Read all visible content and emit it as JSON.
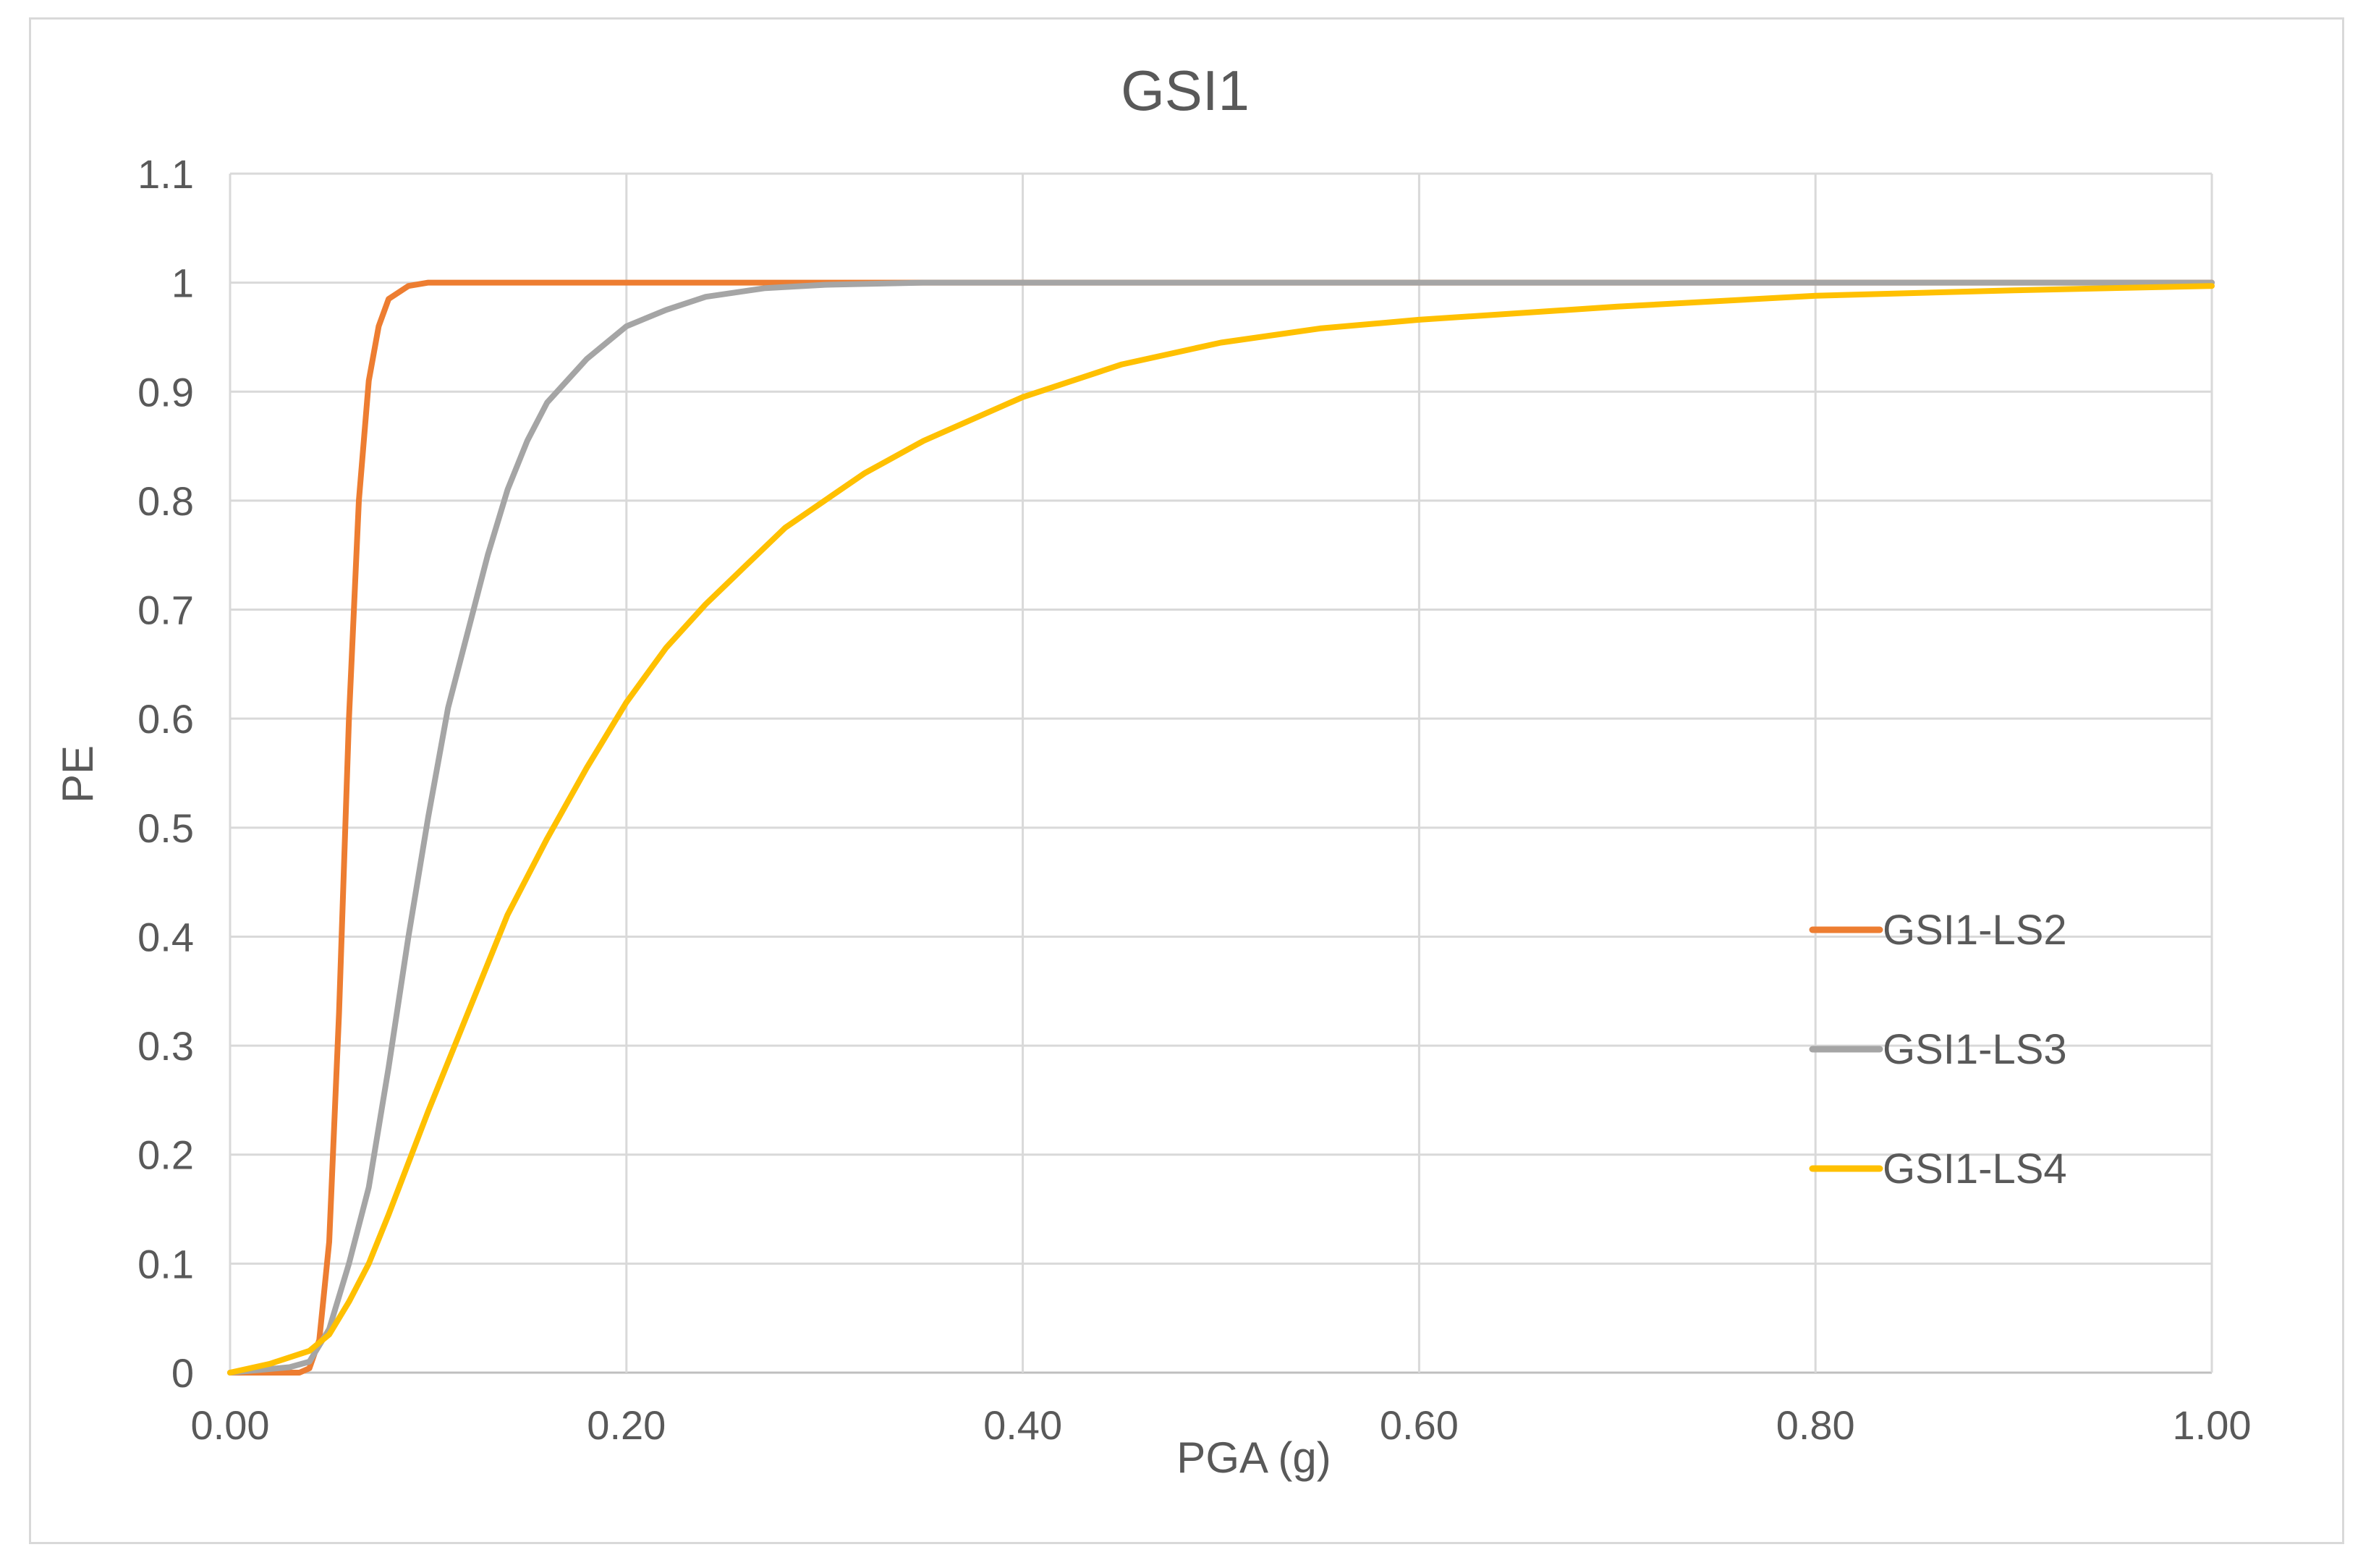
{
  "chart_data": {
    "type": "line",
    "title": "GSI1",
    "xlabel": "PGA (g)",
    "ylabel": "PE",
    "xlim": [
      0,
      1.0
    ],
    "ylim": [
      0,
      1.1
    ],
    "x_ticks": [
      "0.00",
      "0.20",
      "0.40",
      "0.60",
      "0.80",
      "1.00"
    ],
    "y_ticks": [
      "0",
      "0.1",
      "0.2",
      "0.3",
      "0.4",
      "0.5",
      "0.6",
      "0.7",
      "0.8",
      "0.9",
      "1",
      "1.1"
    ],
    "grid": true,
    "legend_position": "right",
    "series": [
      {
        "name": "GSI1-LS2",
        "color": "#ED7D31",
        "points": [
          [
            0,
            0
          ],
          [
            0.035,
            0
          ],
          [
            0.04,
            0.004
          ],
          [
            0.045,
            0.03
          ],
          [
            0.05,
            0.12
          ],
          [
            0.055,
            0.33
          ],
          [
            0.06,
            0.6
          ],
          [
            0.065,
            0.8
          ],
          [
            0.07,
            0.91
          ],
          [
            0.075,
            0.96
          ],
          [
            0.08,
            0.985
          ],
          [
            0.09,
            0.997
          ],
          [
            0.1,
            1.0
          ],
          [
            0.2,
            1.0
          ],
          [
            0.4,
            1.0
          ],
          [
            0.6,
            1.0
          ],
          [
            0.8,
            1.0
          ],
          [
            1.0,
            1.0
          ]
        ]
      },
      {
        "name": "GSI1-LS3",
        "color": "#A5A5A5",
        "points": [
          [
            0,
            0
          ],
          [
            0.03,
            0.005
          ],
          [
            0.04,
            0.01
          ],
          [
            0.05,
            0.04
          ],
          [
            0.06,
            0.1
          ],
          [
            0.07,
            0.17
          ],
          [
            0.08,
            0.28
          ],
          [
            0.09,
            0.4
          ],
          [
            0.1,
            0.51
          ],
          [
            0.11,
            0.61
          ],
          [
            0.12,
            0.68
          ],
          [
            0.13,
            0.75
          ],
          [
            0.14,
            0.81
          ],
          [
            0.15,
            0.855
          ],
          [
            0.16,
            0.89
          ],
          [
            0.18,
            0.93
          ],
          [
            0.2,
            0.96
          ],
          [
            0.22,
            0.975
          ],
          [
            0.24,
            0.987
          ],
          [
            0.27,
            0.995
          ],
          [
            0.3,
            0.998
          ],
          [
            0.35,
            1.0
          ],
          [
            0.4,
            1.0
          ],
          [
            0.6,
            1.0
          ],
          [
            0.8,
            1.0
          ],
          [
            1.0,
            1.0
          ]
        ]
      },
      {
        "name": "GSI1-LS4",
        "color": "#FFC000",
        "points": [
          [
            0,
            0
          ],
          [
            0.02,
            0.008
          ],
          [
            0.04,
            0.02
          ],
          [
            0.05,
            0.035
          ],
          [
            0.06,
            0.065
          ],
          [
            0.07,
            0.1
          ],
          [
            0.08,
            0.145
          ],
          [
            0.1,
            0.24
          ],
          [
            0.12,
            0.33
          ],
          [
            0.14,
            0.42
          ],
          [
            0.16,
            0.49
          ],
          [
            0.18,
            0.555
          ],
          [
            0.2,
            0.615
          ],
          [
            0.22,
            0.665
          ],
          [
            0.24,
            0.705
          ],
          [
            0.26,
            0.74
          ],
          [
            0.28,
            0.775
          ],
          [
            0.3,
            0.8
          ],
          [
            0.32,
            0.825
          ],
          [
            0.35,
            0.855
          ],
          [
            0.4,
            0.895
          ],
          [
            0.45,
            0.925
          ],
          [
            0.5,
            0.945
          ],
          [
            0.55,
            0.958
          ],
          [
            0.6,
            0.966
          ],
          [
            0.7,
            0.978
          ],
          [
            0.8,
            0.988
          ],
          [
            0.9,
            0.993
          ],
          [
            1.0,
            0.997
          ]
        ]
      }
    ]
  }
}
